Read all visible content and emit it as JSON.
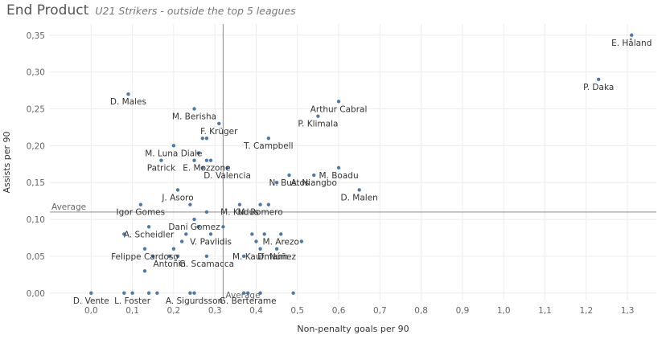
{
  "chart_data": {
    "type": "scatter",
    "title": "End Product",
    "subtitle": "U21 Strikers - outside the top 5 leagues",
    "xlabel": "Non-penalty goals per 90",
    "ylabel": "Assists per 90",
    "xlim": [
      -0.1,
      1.37
    ],
    "ylim": [
      -0.01,
      0.365
    ],
    "xticks": [
      "0,0",
      "0,1",
      "0,2",
      "0,3",
      "0,4",
      "0,5",
      "0,6",
      "0,7",
      "0,8",
      "0,9",
      "1,0",
      "1,1",
      "1,2",
      "1,3"
    ],
    "yticks": [
      "0,00",
      "0,05",
      "0,10",
      "0,15",
      "0,20",
      "0,25",
      "0,30",
      "0,35"
    ],
    "grid": true,
    "reference_lines": {
      "x": {
        "value": 0.32,
        "label": "Average"
      },
      "y": {
        "value": 0.11,
        "label": "Average"
      }
    },
    "colors": {
      "point": "#4e79a7",
      "grid": "#ececec",
      "ref_line": "#9a9a9a",
      "text": "#333333",
      "axis_text": "#666666"
    },
    "points": [
      {
        "x": 1.31,
        "y": 0.35,
        "label": "E. Håland"
      },
      {
        "x": 1.23,
        "y": 0.29,
        "label": "P. Daka"
      },
      {
        "x": 0.6,
        "y": 0.26,
        "label": "Arthur Cabral"
      },
      {
        "x": 0.09,
        "y": 0.27,
        "label": "D. Males"
      },
      {
        "x": 0.25,
        "y": 0.25,
        "label": "M. Berisha"
      },
      {
        "x": 0.55,
        "y": 0.24,
        "label": "P. Klimala"
      },
      {
        "x": 0.31,
        "y": 0.23,
        "label": "F. Krüger"
      },
      {
        "x": 0.27,
        "y": 0.21,
        "label": ""
      },
      {
        "x": 0.28,
        "y": 0.21,
        "label": ""
      },
      {
        "x": 0.43,
        "y": 0.21,
        "label": "T. Campbell"
      },
      {
        "x": 0.2,
        "y": 0.2,
        "label": "M. Luna Diale"
      },
      {
        "x": 0.26,
        "y": 0.19,
        "label": ""
      },
      {
        "x": 0.17,
        "y": 0.18,
        "label": "Patrick"
      },
      {
        "x": 0.25,
        "y": 0.18,
        "label": ""
      },
      {
        "x": 0.28,
        "y": 0.18,
        "label": "E. Mozzone"
      },
      {
        "x": 0.29,
        "y": 0.18,
        "label": ""
      },
      {
        "x": 0.27,
        "y": 0.17,
        "label": ""
      },
      {
        "x": 0.33,
        "y": 0.17,
        "label": "D. Valencia"
      },
      {
        "x": 0.6,
        "y": 0.17,
        "label": "M. Boadu"
      },
      {
        "x": 0.48,
        "y": 0.16,
        "label": "N. Bustos"
      },
      {
        "x": 0.54,
        "y": 0.16,
        "label": "A. Niangbo"
      },
      {
        "x": 0.45,
        "y": 0.15,
        "label": ""
      },
      {
        "x": 0.21,
        "y": 0.14,
        "label": "J. Asoro"
      },
      {
        "x": 0.65,
        "y": 0.14,
        "label": "D. Malen"
      },
      {
        "x": 0.12,
        "y": 0.12,
        "label": "Igor Gomes"
      },
      {
        "x": 0.24,
        "y": 0.12,
        "label": ""
      },
      {
        "x": 0.36,
        "y": 0.12,
        "label": "M. Kudus"
      },
      {
        "x": 0.41,
        "y": 0.12,
        "label": "M. Romero"
      },
      {
        "x": 0.43,
        "y": 0.12,
        "label": ""
      },
      {
        "x": 0.28,
        "y": 0.11,
        "label": ""
      },
      {
        "x": 0.25,
        "y": 0.1,
        "label": "Dani Gomez"
      },
      {
        "x": 0.14,
        "y": 0.09,
        "label": "A. Scheidler"
      },
      {
        "x": 0.26,
        "y": 0.09,
        "label": ""
      },
      {
        "x": 0.32,
        "y": 0.09,
        "label": ""
      },
      {
        "x": 0.08,
        "y": 0.08,
        "label": ""
      },
      {
        "x": 0.23,
        "y": 0.08,
        "label": ""
      },
      {
        "x": 0.29,
        "y": 0.08,
        "label": "V. Pavlidis"
      },
      {
        "x": 0.39,
        "y": 0.08,
        "label": ""
      },
      {
        "x": 0.42,
        "y": 0.08,
        "label": ""
      },
      {
        "x": 0.46,
        "y": 0.08,
        "label": "M. Arezo"
      },
      {
        "x": 0.22,
        "y": 0.07,
        "label": ""
      },
      {
        "x": 0.4,
        "y": 0.07,
        "label": ""
      },
      {
        "x": 0.51,
        "y": 0.07,
        "label": ""
      },
      {
        "x": 0.13,
        "y": 0.06,
        "label": "Felippe Cardoso"
      },
      {
        "x": 0.2,
        "y": 0.06,
        "label": ""
      },
      {
        "x": 0.41,
        "y": 0.06,
        "label": "M. Kaufmann"
      },
      {
        "x": 0.45,
        "y": 0.06,
        "label": "D. Núñez"
      },
      {
        "x": 0.15,
        "y": 0.05,
        "label": ""
      },
      {
        "x": 0.19,
        "y": 0.05,
        "label": "Antoñin"
      },
      {
        "x": 0.21,
        "y": 0.05,
        "label": ""
      },
      {
        "x": 0.28,
        "y": 0.05,
        "label": "G. Scamacca"
      },
      {
        "x": 0.37,
        "y": 0.05,
        "label": ""
      },
      {
        "x": 0.13,
        "y": 0.03,
        "label": ""
      },
      {
        "x": 0.0,
        "y": 0.0,
        "label": "D. Vente"
      },
      {
        "x": 0.08,
        "y": 0.0,
        "label": ""
      },
      {
        "x": 0.1,
        "y": 0.0,
        "label": "L. Foster"
      },
      {
        "x": 0.14,
        "y": 0.0,
        "label": ""
      },
      {
        "x": 0.16,
        "y": 0.0,
        "label": ""
      },
      {
        "x": 0.24,
        "y": 0.0,
        "label": ""
      },
      {
        "x": 0.25,
        "y": 0.0,
        "label": "A. Sigurdsson"
      },
      {
        "x": 0.37,
        "y": 0.0,
        "label": ""
      },
      {
        "x": 0.38,
        "y": 0.0,
        "label": "G. Berterame"
      },
      {
        "x": 0.41,
        "y": 0.0,
        "label": ""
      },
      {
        "x": 0.49,
        "y": 0.0,
        "label": ""
      }
    ]
  }
}
